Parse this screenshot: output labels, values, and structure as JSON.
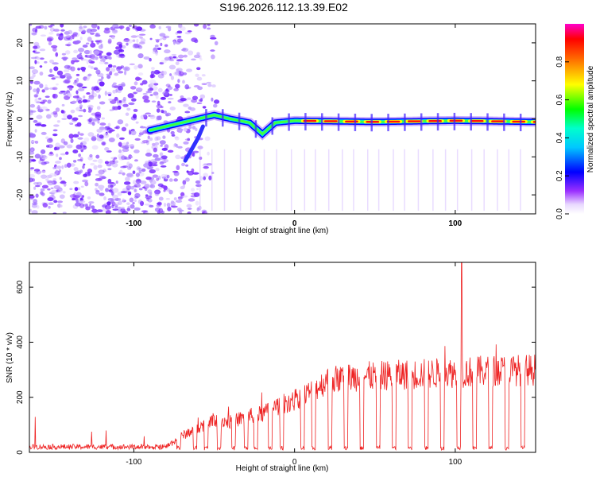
{
  "chart_data": [
    {
      "type": "heatmap",
      "title": "S196.2026.112.13.39.E02",
      "xlabel": "Height of straight line (km)",
      "ylabel": "Frequency (Hz)",
      "xlim": [
        -165,
        150
      ],
      "ylim": [
        -25,
        25
      ],
      "xticks": [
        -100,
        0,
        100
      ],
      "xtick_labels": [
        "-100",
        "0",
        "100"
      ],
      "yticks": [
        -20,
        -10,
        0,
        10,
        20
      ],
      "ytick_labels": [
        "-20",
        "-10",
        "0",
        "10",
        "20"
      ],
      "colorbar": {
        "label": "Normalized spectral amplitude",
        "range": [
          0,
          1
        ],
        "ticks": [
          0.0,
          0.2,
          0.4,
          0.6,
          0.8
        ],
        "tick_labels": [
          "0.0",
          "0.2",
          "0.4",
          "0.6",
          "0.8"
        ],
        "colors": [
          "#ffffff",
          "#e0ccff",
          "#8a2be2",
          "#0000ff",
          "#00ffff",
          "#00ff00",
          "#ffff00",
          "#ff0000",
          "#ff00ff"
        ]
      },
      "ridge": {
        "description_points": [
          {
            "x": -90,
            "y": -3
          },
          {
            "x": -70,
            "y": -1
          },
          {
            "x": -60,
            "y": 0
          },
          {
            "x": -50,
            "y": 1
          },
          {
            "x": -40,
            "y": 0
          },
          {
            "x": -28,
            "y": -1
          },
          {
            "x": -20,
            "y": -4
          },
          {
            "x": -12,
            "y": -1
          },
          {
            "x": 0,
            "y": -0.5
          },
          {
            "x": 50,
            "y": -0.8
          },
          {
            "x": 100,
            "y": -0.5
          },
          {
            "x": 150,
            "y": -0.8
          }
        ]
      }
    },
    {
      "type": "line",
      "xlabel": "Height of straight line (km)",
      "ylabel": "SNR (10 * v/v)",
      "xlim": [
        -165,
        150
      ],
      "ylim": [
        0,
        690
      ],
      "xticks": [
        -100,
        0,
        100
      ],
      "xtick_labels": [
        "-100",
        "0",
        "100"
      ],
      "yticks": [
        0,
        200,
        400,
        600
      ],
      "ytick_labels": [
        "0",
        "200",
        "400",
        "600"
      ],
      "color": "#ee2222",
      "series": [
        {
          "name": "SNR",
          "envelope": [
            {
              "x": -165,
              "y": 20
            },
            {
              "x": -80,
              "y": 20
            },
            {
              "x": -70,
              "y": 60
            },
            {
              "x": -60,
              "y": 90
            },
            {
              "x": -50,
              "y": 120
            },
            {
              "x": -40,
              "y": 110
            },
            {
              "x": -30,
              "y": 130
            },
            {
              "x": -20,
              "y": 140
            },
            {
              "x": -10,
              "y": 170
            },
            {
              "x": 0,
              "y": 190
            },
            {
              "x": 10,
              "y": 220
            },
            {
              "x": 20,
              "y": 260
            },
            {
              "x": 30,
              "y": 270
            },
            {
              "x": 40,
              "y": 275
            },
            {
              "x": 60,
              "y": 280
            },
            {
              "x": 80,
              "y": 285
            },
            {
              "x": 100,
              "y": 290
            },
            {
              "x": 120,
              "y": 295
            },
            {
              "x": 150,
              "y": 300
            }
          ],
          "dips": [
            -88,
            -72,
            -62,
            -55,
            -47,
            -38,
            -30,
            -24,
            -15,
            -8,
            5,
            12,
            22,
            32,
            42,
            52,
            62,
            72,
            82,
            92,
            102,
            112,
            122,
            132,
            142
          ],
          "peak": {
            "x": 104,
            "y": 690
          }
        }
      ]
    }
  ]
}
